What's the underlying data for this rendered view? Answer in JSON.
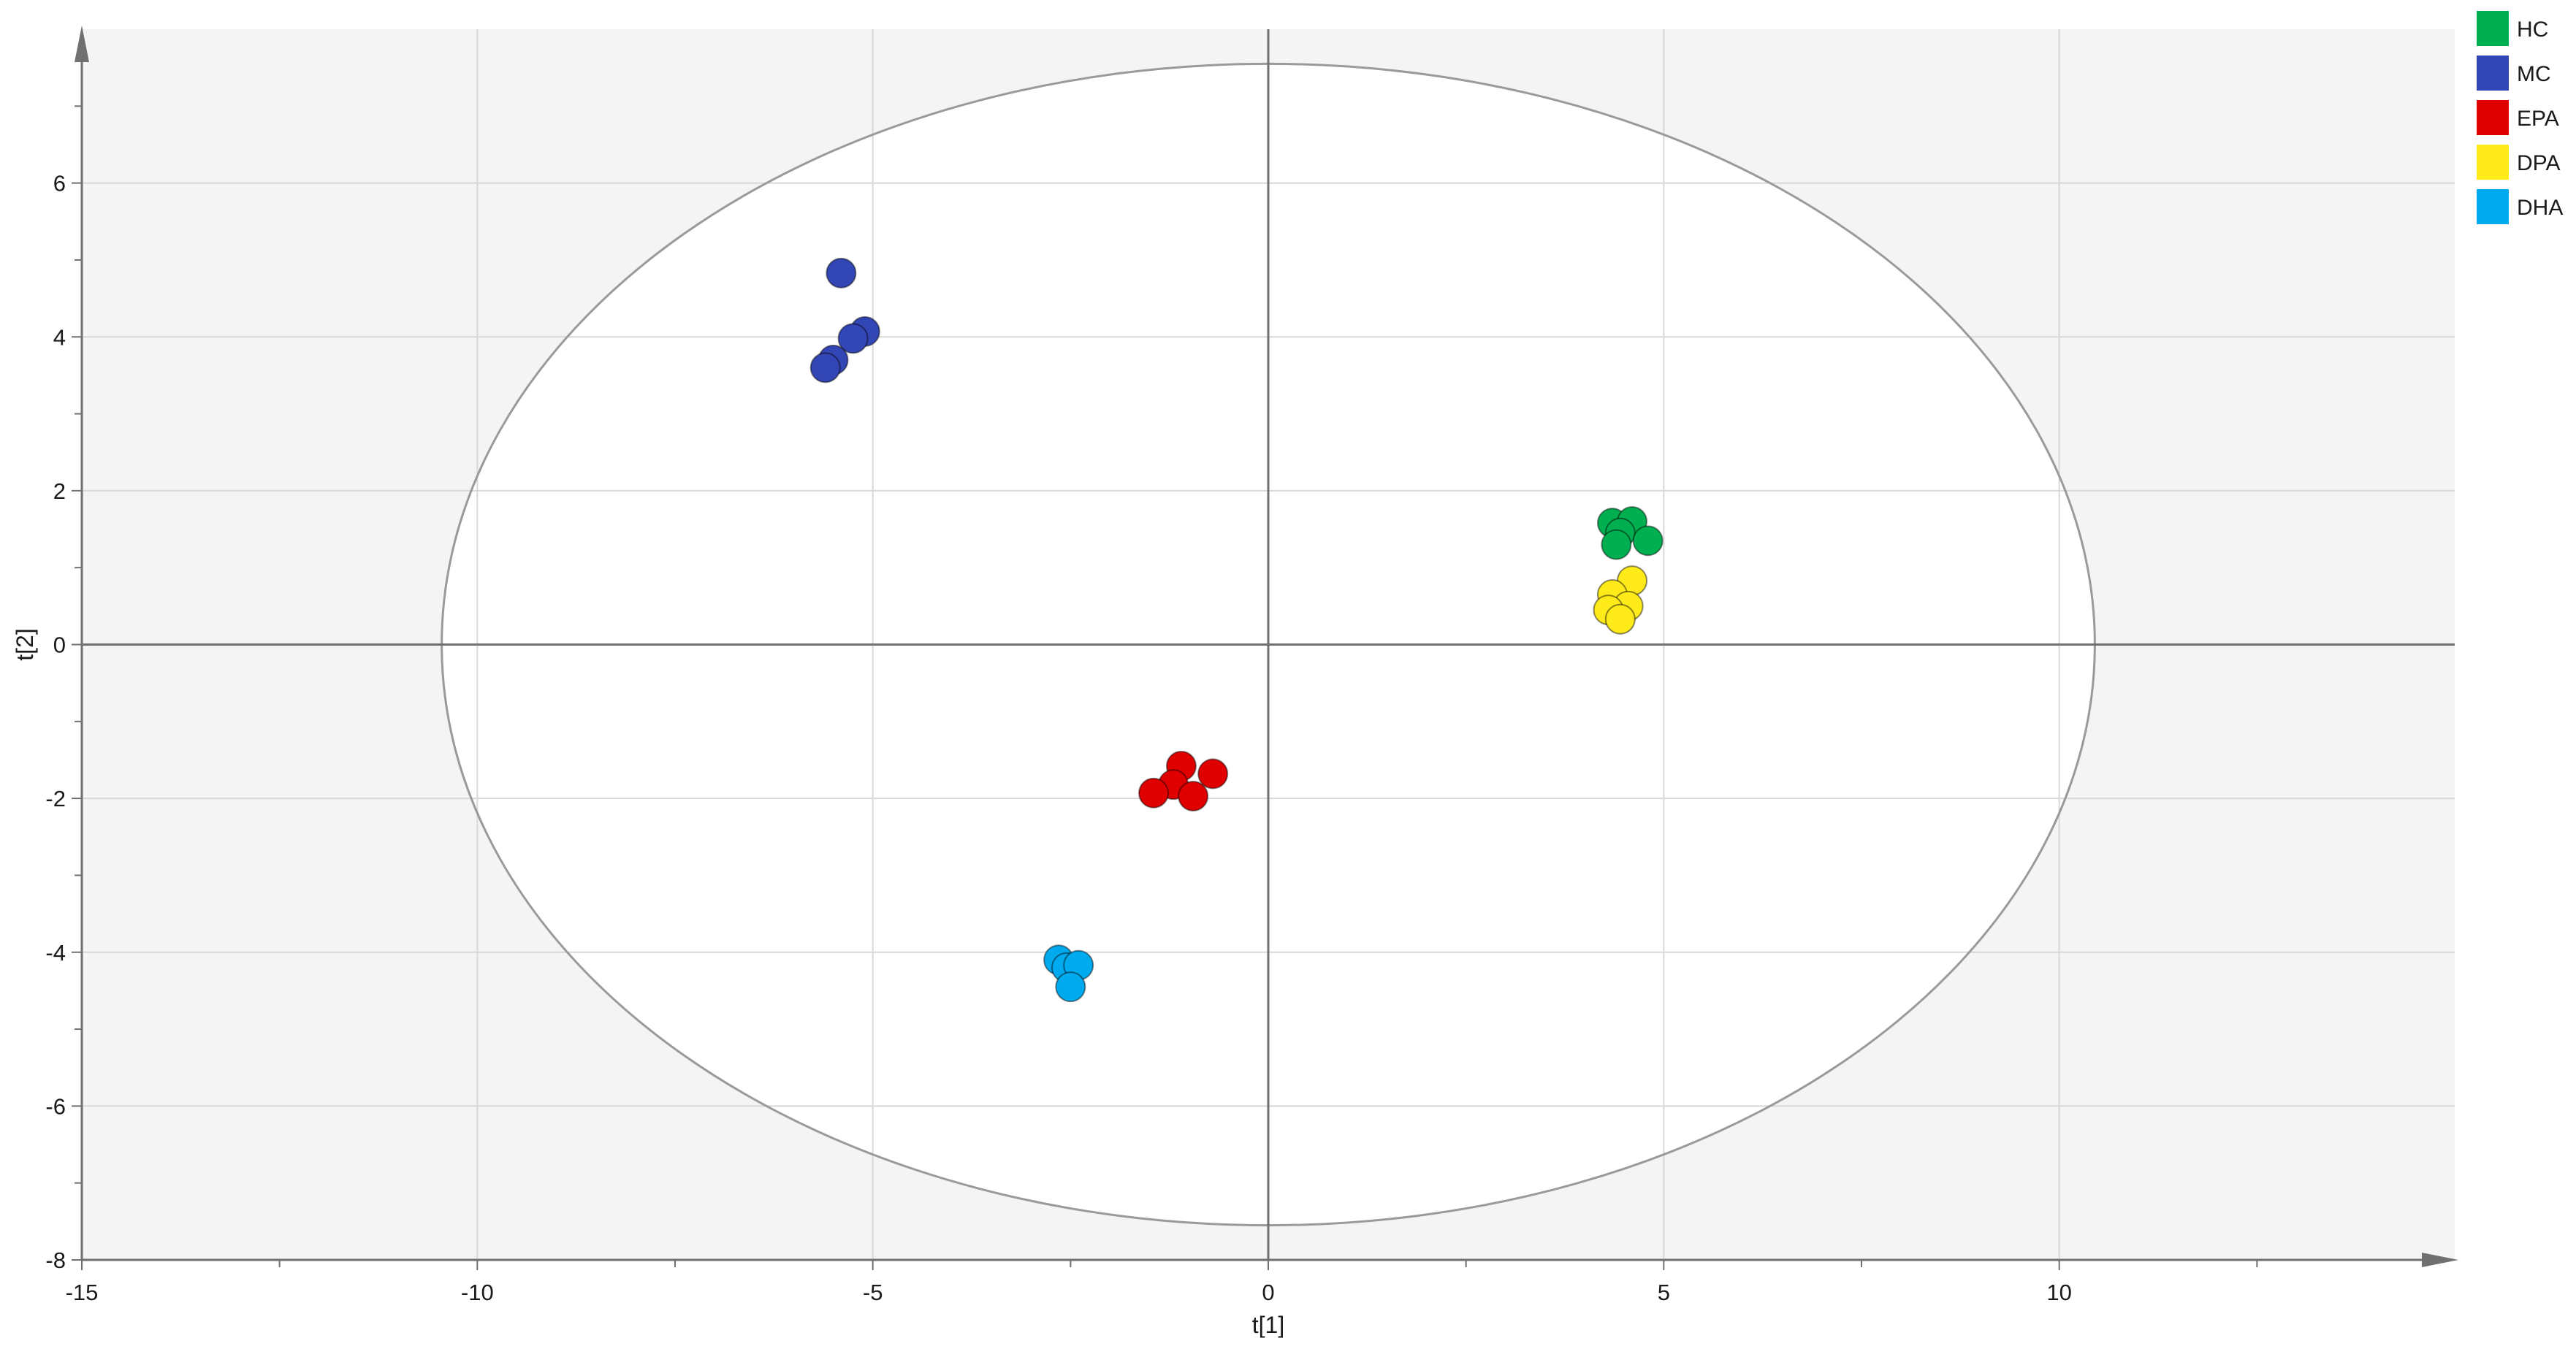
{
  "chart_data": {
    "type": "scatter",
    "title": "",
    "xlabel": "t[1]",
    "ylabel": "t[2]",
    "xlim": [
      -15,
      15
    ],
    "ylim": [
      -8,
      8
    ],
    "x_ticks": [
      -15,
      -10,
      -5,
      0,
      5,
      10
    ],
    "y_ticks": [
      -8,
      -6,
      -4,
      -2,
      0,
      2,
      4,
      6
    ],
    "grid": true,
    "legend_position": "top-right",
    "ellipse": {
      "center": [
        0,
        0
      ],
      "rx": 10.45,
      "ry": 7.55,
      "stroke": "#9a9a9a"
    },
    "background": {
      "outside_ellipse": "#f4f4f4",
      "inside_ellipse": "#ffffff"
    },
    "series": [
      {
        "name": "HC",
        "color": "#00b050",
        "points": [
          [
            4.35,
            1.58
          ],
          [
            4.6,
            1.6
          ],
          [
            4.45,
            1.45
          ],
          [
            4.8,
            1.35
          ],
          [
            4.4,
            1.3
          ]
        ]
      },
      {
        "name": "MC",
        "color": "#3346b5",
        "points": [
          [
            -5.4,
            4.83
          ],
          [
            -5.1,
            4.07
          ],
          [
            -5.25,
            3.98
          ],
          [
            -5.5,
            3.7
          ],
          [
            -5.6,
            3.6
          ]
        ]
      },
      {
        "name": "EPA",
        "color": "#e00000",
        "points": [
          [
            -1.1,
            -1.58
          ],
          [
            -0.7,
            -1.68
          ],
          [
            -1.2,
            -1.82
          ],
          [
            -1.45,
            -1.93
          ],
          [
            -0.95,
            -1.97
          ]
        ]
      },
      {
        "name": "DPA",
        "color": "#ffeb1a",
        "points": [
          [
            4.6,
            0.83
          ],
          [
            4.35,
            0.65
          ],
          [
            4.55,
            0.5
          ],
          [
            4.3,
            0.45
          ],
          [
            4.45,
            0.33
          ]
        ]
      },
      {
        "name": "DHA",
        "color": "#00aaee",
        "points": [
          [
            -2.65,
            -4.1
          ],
          [
            -2.55,
            -4.2
          ],
          [
            -2.4,
            -4.17
          ],
          [
            -2.5,
            -4.45
          ]
        ]
      }
    ]
  }
}
